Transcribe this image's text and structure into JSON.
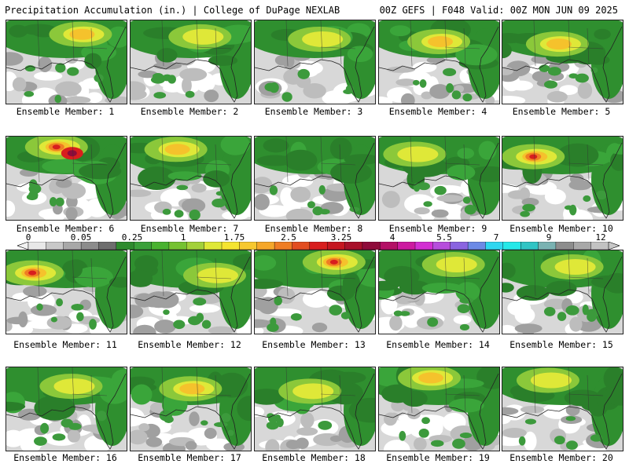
{
  "header": {
    "left": "Precipitation Accumulation (in.) | College of DuPage NEXLAB",
    "right": "00Z GEFS | F048 Valid: 00Z MON JUN 09 2025"
  },
  "colorbar": {
    "labels": [
      "0",
      "0.05",
      "0.25",
      "1",
      "1.75",
      "2.5",
      "3.25",
      "4",
      "5.5",
      "7",
      "9",
      "12"
    ],
    "colors": [
      "#e8e8e8",
      "#c8c8c8",
      "#a8a8a8",
      "#8c8c8c",
      "#6e6e6e",
      "#2e8b2e",
      "#3aa03a",
      "#49b230",
      "#76c232",
      "#a3d13a",
      "#dfe838",
      "#f5e431",
      "#f7c82f",
      "#f5a72a",
      "#ef7d24",
      "#e24d20",
      "#d81e1e",
      "#c51620",
      "#a8102a",
      "#8e0b3a",
      "#b31066",
      "#cc1aa0",
      "#d22fd2",
      "#b64ddc",
      "#8a64e0",
      "#6c8ae6",
      "#2fd7f0",
      "#25e8e8",
      "#31c4c4",
      "#7ab2b2",
      "#8d8d8d",
      "#a8a8a8",
      "#c2c2c2"
    ]
  },
  "members": [
    {
      "label": "Ensemble Member: 1",
      "intensity": 2
    },
    {
      "label": "Ensemble Member: 2",
      "intensity": 1
    },
    {
      "label": "Ensemble Member: 3",
      "intensity": 1
    },
    {
      "label": "Ensemble Member: 4",
      "intensity": 2
    },
    {
      "label": "Ensemble Member: 5",
      "intensity": 2
    },
    {
      "label": "Ensemble Member: 6",
      "intensity": 4
    },
    {
      "label": "Ensemble Member: 7",
      "intensity": 2
    },
    {
      "label": "Ensemble Member: 8",
      "intensity": 0
    },
    {
      "label": "Ensemble Member: 9",
      "intensity": 1
    },
    {
      "label": "Ensemble Member: 10",
      "intensity": 3
    },
    {
      "label": "Ensemble Member: 11",
      "intensity": 3
    },
    {
      "label": "Ensemble Member: 12",
      "intensity": 1
    },
    {
      "label": "Ensemble Member: 13",
      "intensity": 3
    },
    {
      "label": "Ensemble Member: 14",
      "intensity": 1
    },
    {
      "label": "Ensemble Member: 15",
      "intensity": 1
    },
    {
      "label": "Ensemble Member: 16",
      "intensity": 1
    },
    {
      "label": "Ensemble Member: 17",
      "intensity": 2
    },
    {
      "label": "Ensemble Member: 18",
      "intensity": 1
    },
    {
      "label": "Ensemble Member: 19",
      "intensity": 2
    },
    {
      "label": "Ensemble Member: 20",
      "intensity": 1
    }
  ]
}
